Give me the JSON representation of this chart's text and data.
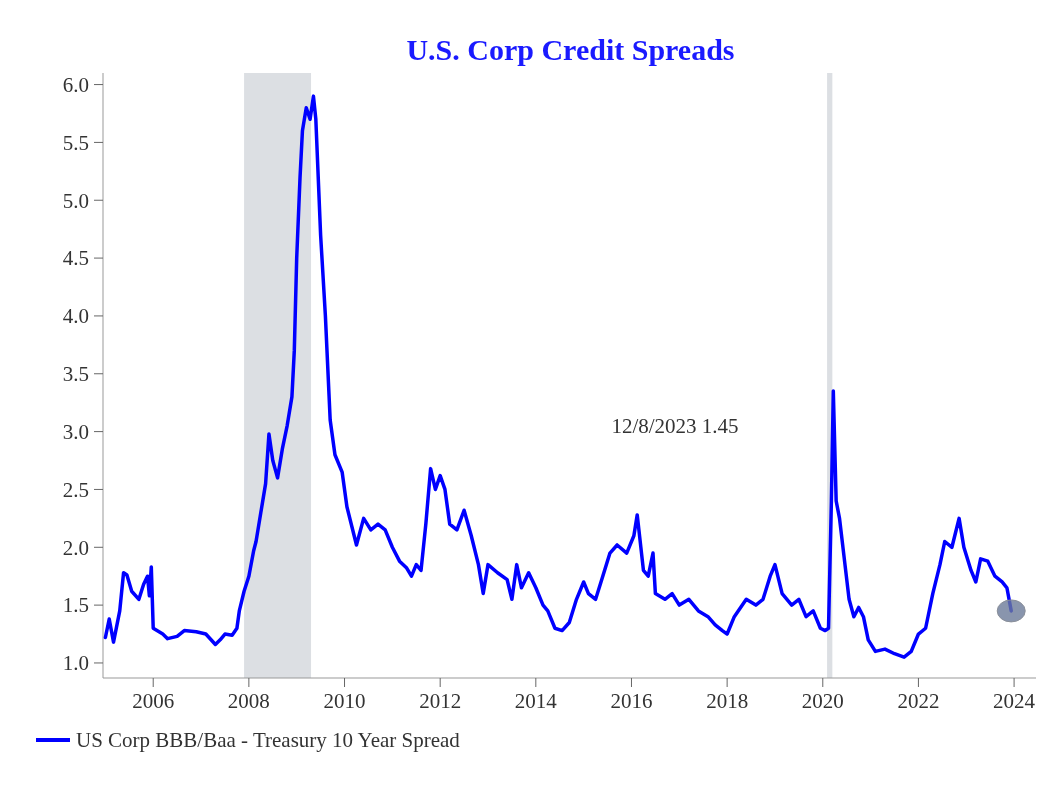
{
  "chart_data": {
    "type": "line",
    "title": "U.S. Corp Credit Spreads",
    "xlim": [
      2004.95,
      2024.5
    ],
    "xticks": [
      2006,
      2008,
      2010,
      2012,
      2014,
      2016,
      2018,
      2020,
      2022,
      2024
    ],
    "ylim": [
      0.87,
      6.1
    ],
    "yticks": [
      {
        "value": 1,
        "label": "1.0"
      },
      {
        "value": 1.5,
        "label": "1.5"
      },
      {
        "value": 2,
        "label": "2.0"
      },
      {
        "value": 2.5,
        "label": "2.5"
      },
      {
        "value": 3,
        "label": "3.0"
      },
      {
        "value": 3.5,
        "label": "3.5"
      },
      {
        "value": 4,
        "label": "4.0"
      },
      {
        "value": 4.5,
        "label": "4.5"
      },
      {
        "value": 5,
        "label": "5.0"
      },
      {
        "value": 5.5,
        "label": "5.5"
      },
      {
        "value": 6,
        "label": "6.0"
      }
    ],
    "grid": false,
    "legend": "bottom",
    "line_style": "solid",
    "marker": "none",
    "bands": [
      {
        "axis": "x",
        "from": 2007.9,
        "to": 2009.3,
        "color": "#dcdfe3"
      },
      {
        "axis": "x",
        "from": 2020.09,
        "to": 2020.2,
        "color": "#dcdfe3"
      }
    ],
    "annotations": [
      "12/8/2023 1.45"
    ],
    "series": [
      {
        "name": "US Corp BBB/Baa - Treasury 10 Year Spread",
        "color": "#0000ff",
        "x": [
          2005.0,
          2005.08,
          2005.17,
          2005.3,
          2005.38,
          2005.45,
          2005.55,
          2005.7,
          2005.8,
          2005.88,
          2005.92,
          2005.96,
          2006.0,
          2006.2,
          2006.3,
          2006.5,
          2006.65,
          2006.9,
          2007.1,
          2007.3,
          2007.4,
          2007.5,
          2007.65,
          2007.75,
          2007.8,
          2007.9,
          2008.0,
          2008.1,
          2008.15,
          2008.25,
          2008.35,
          2008.42,
          2008.5,
          2008.6,
          2008.7,
          2008.8,
          2008.9,
          2008.95,
          2009.0,
          2009.07,
          2009.12,
          2009.2,
          2009.28,
          2009.35,
          2009.4,
          2009.5,
          2009.6,
          2009.7,
          2009.8,
          2009.95,
          2010.05,
          2010.25,
          2010.4,
          2010.55,
          2010.7,
          2010.85,
          2011.0,
          2011.15,
          2011.3,
          2011.4,
          2011.5,
          2011.6,
          2011.7,
          2011.8,
          2011.9,
          2012.0,
          2012.1,
          2012.2,
          2012.35,
          2012.5,
          2012.65,
          2012.8,
          2012.9,
          2013.0,
          2013.2,
          2013.4,
          2013.5,
          2013.6,
          2013.7,
          2013.85,
          2014.0,
          2014.15,
          2014.25,
          2014.4,
          2014.55,
          2014.7,
          2014.85,
          2015.0,
          2015.1,
          2015.25,
          2015.4,
          2015.55,
          2015.7,
          2015.9,
          2016.05,
          2016.12,
          2016.25,
          2016.35,
          2016.45,
          2016.5,
          2016.7,
          2016.85,
          2017.0,
          2017.2,
          2017.4,
          2017.6,
          2017.75,
          2017.9,
          2018.0,
          2018.15,
          2018.4,
          2018.6,
          2018.75,
          2018.9,
          2019.0,
          2019.15,
          2019.35,
          2019.5,
          2019.65,
          2019.8,
          2019.95,
          2020.05,
          2020.12,
          2020.18,
          2020.22,
          2020.28,
          2020.35,
          2020.45,
          2020.55,
          2020.65,
          2020.75,
          2020.85,
          2020.95,
          2021.1,
          2021.3,
          2021.5,
          2021.7,
          2021.85,
          2022.0,
          2022.15,
          2022.3,
          2022.45,
          2022.55,
          2022.7,
          2022.85,
          2022.95,
          2023.1,
          2023.2,
          2023.3,
          2023.45,
          2023.6,
          2023.75,
          2023.85,
          2023.94
        ],
        "values": [
          1.22,
          1.38,
          1.18,
          1.45,
          1.78,
          1.76,
          1.62,
          1.55,
          1.68,
          1.75,
          1.58,
          1.83,
          1.3,
          1.25,
          1.21,
          1.23,
          1.28,
          1.27,
          1.25,
          1.16,
          1.2,
          1.25,
          1.24,
          1.3,
          1.45,
          1.62,
          1.75,
          1.97,
          2.05,
          2.3,
          2.55,
          2.98,
          2.75,
          2.6,
          2.85,
          3.05,
          3.3,
          3.7,
          4.5,
          5.2,
          5.6,
          5.8,
          5.7,
          5.9,
          5.7,
          4.7,
          4.0,
          3.1,
          2.8,
          2.65,
          2.35,
          2.02,
          2.25,
          2.15,
          2.2,
          2.15,
          2.0,
          1.88,
          1.82,
          1.75,
          1.85,
          1.8,
          2.2,
          2.68,
          2.5,
          2.62,
          2.5,
          2.2,
          2.15,
          2.32,
          2.1,
          1.85,
          1.6,
          1.85,
          1.78,
          1.72,
          1.55,
          1.85,
          1.65,
          1.78,
          1.65,
          1.5,
          1.45,
          1.3,
          1.28,
          1.35,
          1.55,
          1.7,
          1.6,
          1.55,
          1.75,
          1.95,
          2.02,
          1.95,
          2.1,
          2.28,
          1.8,
          1.75,
          1.95,
          1.6,
          1.55,
          1.6,
          1.5,
          1.55,
          1.45,
          1.4,
          1.33,
          1.28,
          1.25,
          1.4,
          1.55,
          1.5,
          1.55,
          1.75,
          1.85,
          1.6,
          1.5,
          1.55,
          1.4,
          1.45,
          1.3,
          1.28,
          1.3,
          2.4,
          3.35,
          2.4,
          2.25,
          1.9,
          1.55,
          1.4,
          1.48,
          1.4,
          1.2,
          1.1,
          1.12,
          1.08,
          1.05,
          1.1,
          1.25,
          1.3,
          1.6,
          1.85,
          2.05,
          2.0,
          2.25,
          2.0,
          1.8,
          1.7,
          1.9,
          1.88,
          1.75,
          1.7,
          1.65,
          1.45
        ]
      }
    ]
  }
}
